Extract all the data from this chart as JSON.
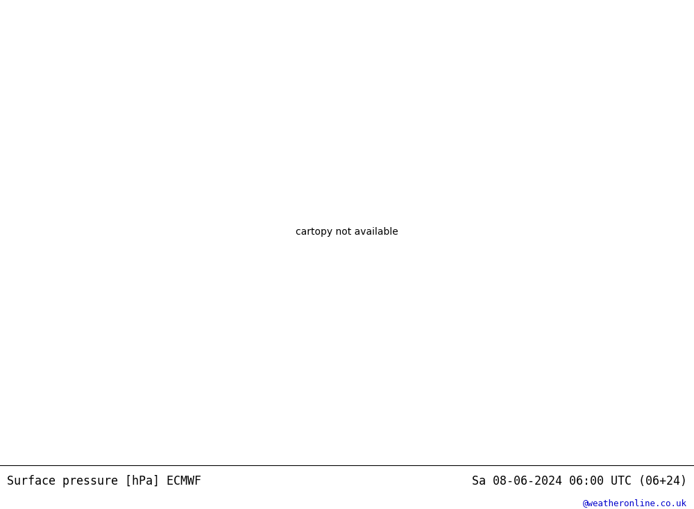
{
  "title_left": "Surface pressure [hPa] ECMWF",
  "title_right": "Sa 08-06-2024 06:00 UTC (06+24)",
  "watermark": "@weatheronline.co.uk",
  "land_color": "#b4e6a0",
  "sea_color": "#d2d2d2",
  "bg_color": "#b4e6a0",
  "bottom_bar_color": "#ffffff",
  "font_family": "DejaVu Sans Mono",
  "title_fontsize": 12,
  "watermark_fontsize": 9,
  "fig_width": 10.0,
  "fig_height": 7.33,
  "dpi": 100,
  "blue": "#0000cc",
  "red": "#cc0000",
  "black": "#000000",
  "coast_color": "#808080"
}
